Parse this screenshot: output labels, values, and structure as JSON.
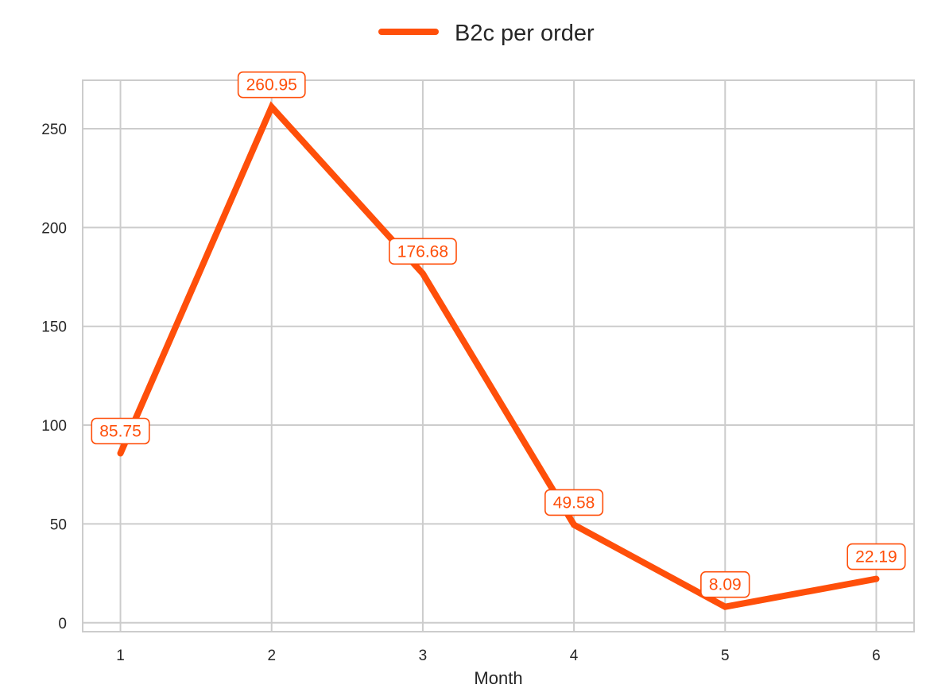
{
  "chart_data": {
    "type": "line",
    "x": [
      1,
      2,
      3,
      4,
      5,
      6
    ],
    "series": [
      {
        "name": "B2c per order",
        "values": [
          85.75,
          260.95,
          176.68,
          49.58,
          8.09,
          22.19
        ],
        "labels": [
          "85.75",
          "260.95",
          "176.68",
          "49.58",
          "8.09",
          "22.19"
        ]
      }
    ],
    "xlabel": "Month",
    "ylabel": "",
    "xticks": [
      1,
      2,
      3,
      4,
      5,
      6
    ],
    "yticks": [
      0,
      50,
      100,
      150,
      200,
      250
    ],
    "xlim": [
      0.75,
      6.25
    ],
    "ylim": [
      -4.5,
      274.5
    ],
    "grid": true,
    "legend_position": "top-center",
    "colors": {
      "series": "#ff4f0a",
      "grid": "#cccccc",
      "axes": "#cccccc",
      "text": "#262626"
    }
  }
}
